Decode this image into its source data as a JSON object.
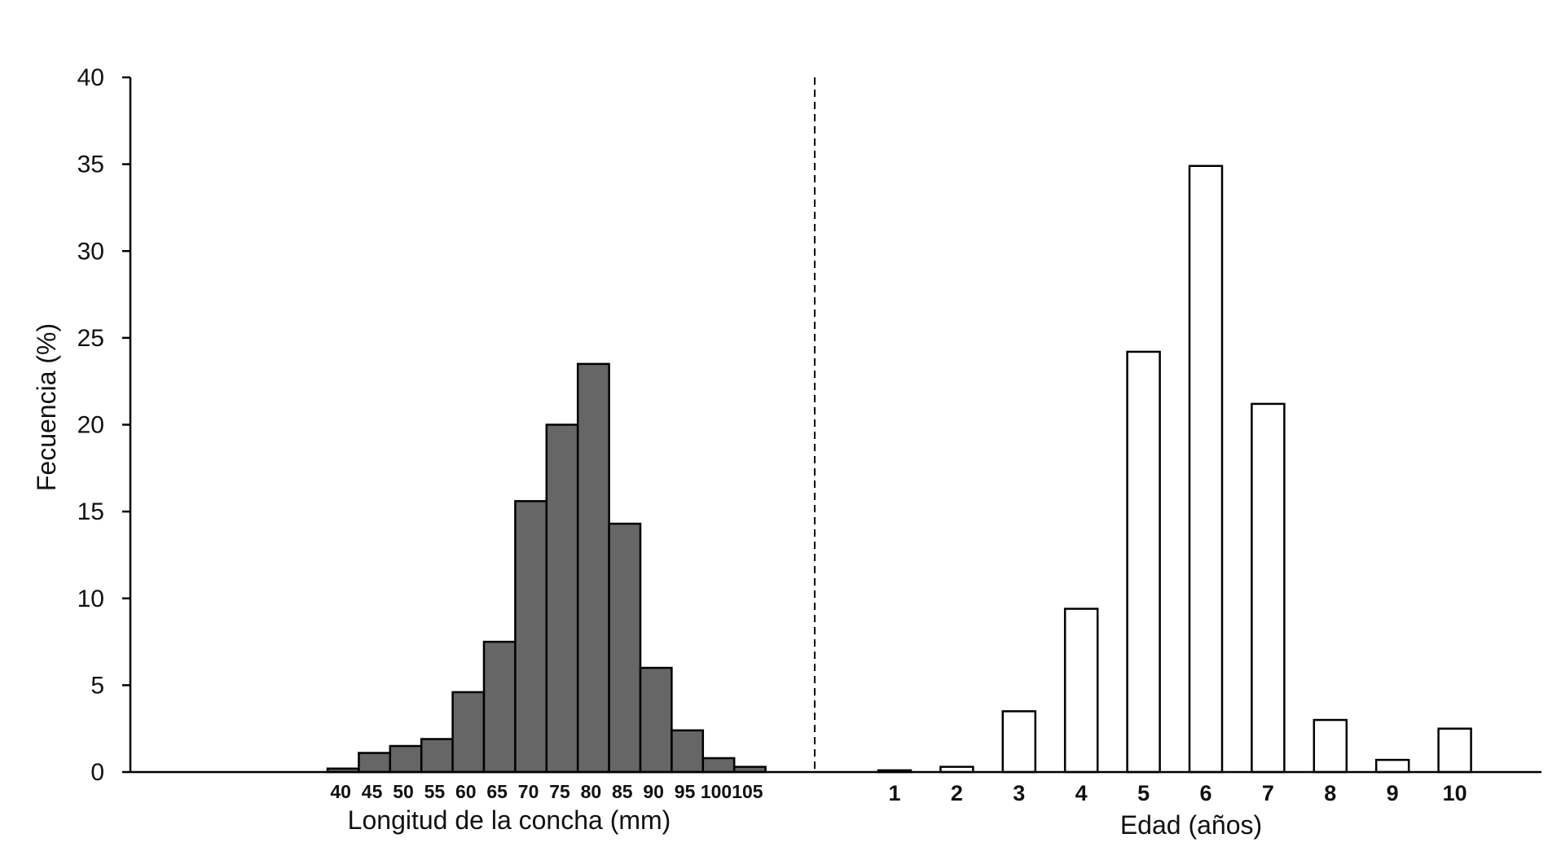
{
  "chart_data": [
    {
      "type": "bar",
      "ylabel": "Fecuencia (%)",
      "xlabel": "Longitud de la concha (mm)",
      "ylim": [
        0,
        40
      ],
      "yticks": [
        0,
        5,
        10,
        15,
        20,
        25,
        30,
        35,
        40
      ],
      "categories": [
        "40",
        "45",
        "50",
        "55",
        "60",
        "65",
        "70",
        "75",
        "80",
        "85",
        "90",
        "95",
        "100",
        "105"
      ],
      "values": [
        0.2,
        1.1,
        1.5,
        1.9,
        4.6,
        7.5,
        15.6,
        20.0,
        23.5,
        14.3,
        6.0,
        2.4,
        0.8,
        0.3
      ],
      "bar_color": "#666666"
    },
    {
      "type": "bar",
      "xlabel": "Edad (años)",
      "ylim": [
        0,
        40
      ],
      "categories": [
        "1",
        "2",
        "3",
        "4",
        "5",
        "6",
        "7",
        "8",
        "9",
        "10"
      ],
      "values": [
        0.1,
        0.3,
        3.5,
        9.4,
        24.2,
        34.9,
        21.2,
        3.0,
        0.7,
        2.5
      ],
      "bar_color": "#ffffff"
    }
  ],
  "colors": {
    "axis": "#000000",
    "length_bars": "#666666",
    "age_bars": "#ffffff",
    "bar_stroke": "#000000"
  },
  "divider": {
    "style": "dashed"
  }
}
